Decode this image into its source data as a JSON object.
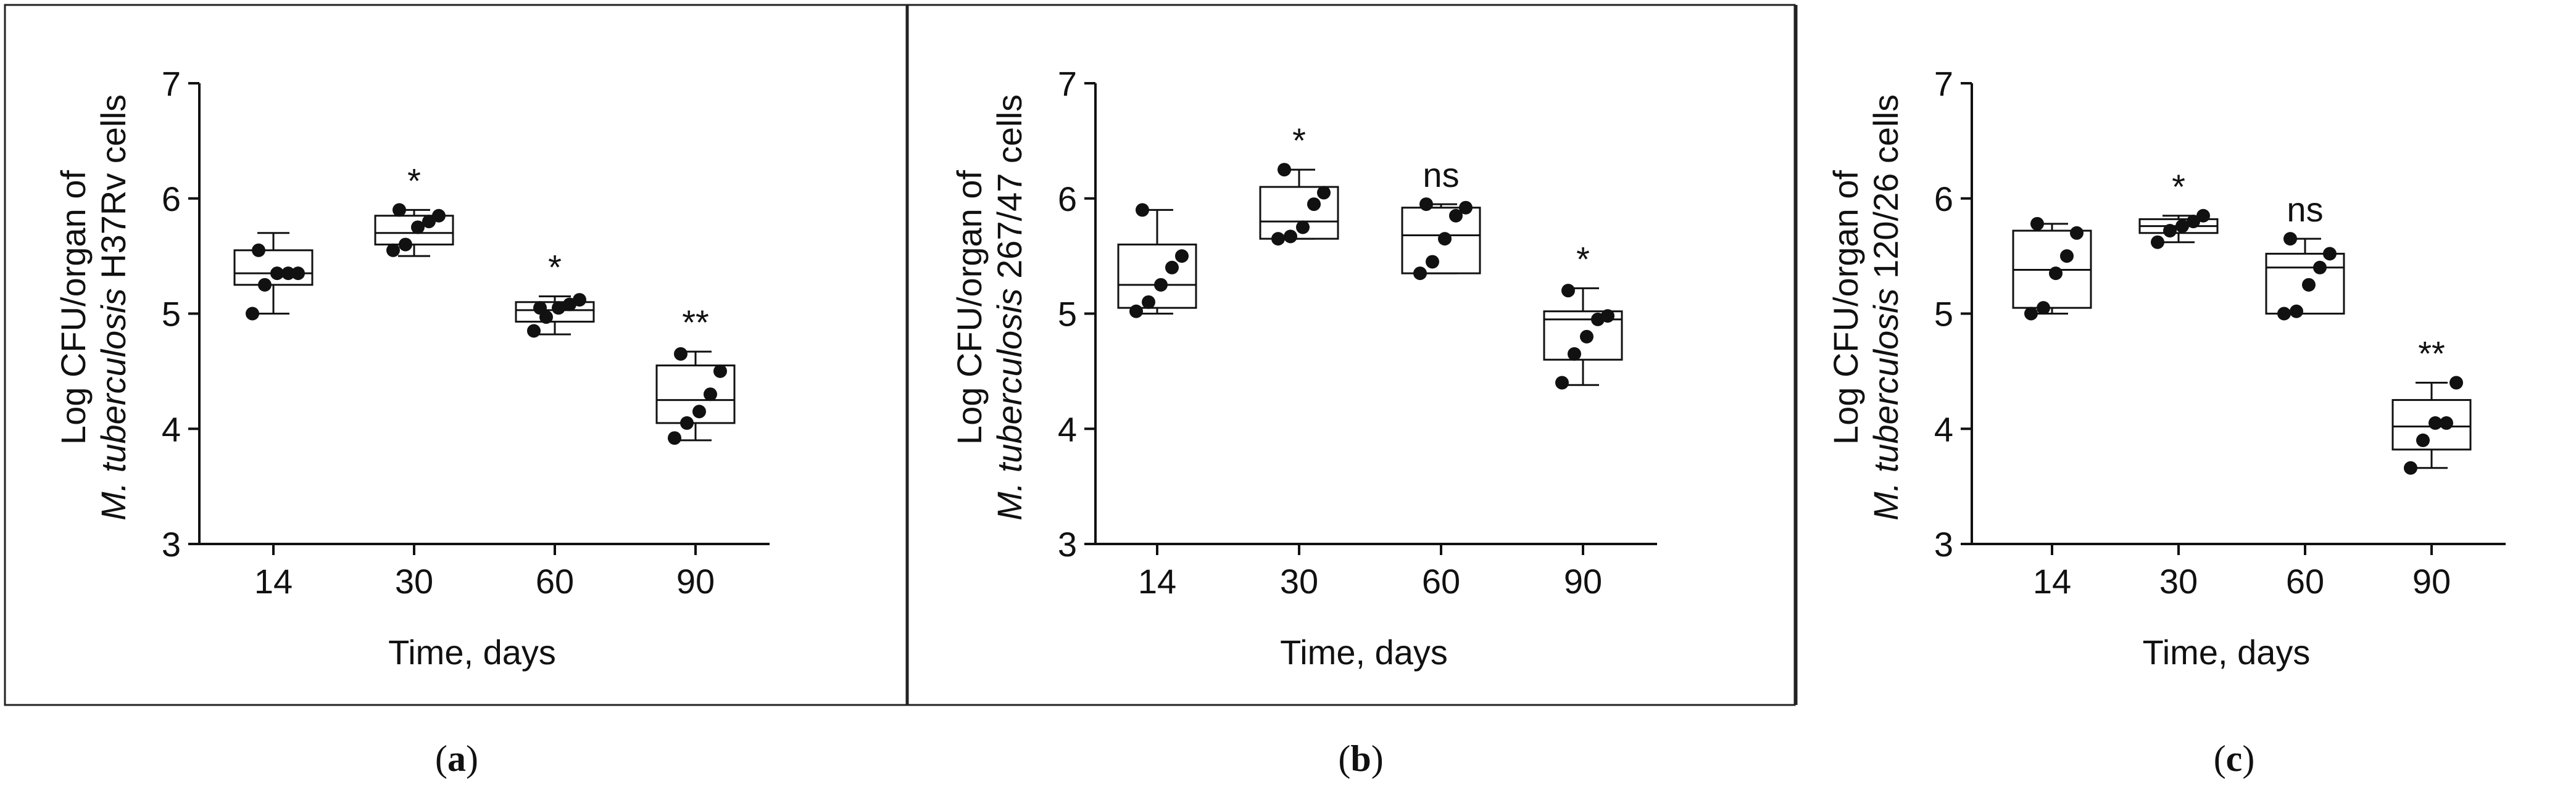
{
  "x_axis_label": "Time, days",
  "chart_data": [
    {
      "type": "box",
      "panel": "a",
      "caption_open": "(",
      "caption_letter": "a",
      "caption_close": ")",
      "ylabel_line1": "Log CFU/organ of",
      "ylabel_italic": "M. tuberculosis",
      "ylabel_rest": " H37Rv cells",
      "xlabel": "Time, days",
      "categories": [
        "14",
        "30",
        "60",
        "90"
      ],
      "yticks": [
        "3",
        "4",
        "5",
        "6",
        "7"
      ],
      "ylim": [
        3,
        7
      ],
      "boxes": [
        {
          "min": 5.0,
          "q1": 5.25,
          "median": 5.35,
          "q3": 5.55,
          "max": 5.7,
          "points": [
            5.0,
            5.25,
            5.35,
            5.35,
            5.35,
            5.55
          ],
          "significance": ""
        },
        {
          "min": 5.5,
          "q1": 5.6,
          "median": 5.7,
          "q3": 5.85,
          "max": 5.9,
          "points": [
            5.55,
            5.6,
            5.75,
            5.8,
            5.85,
            5.9
          ],
          "significance": "*"
        },
        {
          "min": 4.82,
          "q1": 4.93,
          "median": 5.03,
          "q3": 5.1,
          "max": 5.15,
          "points": [
            4.85,
            4.97,
            5.05,
            5.08,
            5.12,
            5.05
          ],
          "significance": "*"
        },
        {
          "min": 3.9,
          "q1": 4.05,
          "median": 4.25,
          "q3": 4.55,
          "max": 4.67,
          "points": [
            3.92,
            4.05,
            4.15,
            4.3,
            4.5,
            4.65
          ],
          "significance": "**"
        }
      ]
    },
    {
      "type": "box",
      "panel": "b",
      "caption_open": "(",
      "caption_letter": "b",
      "caption_close": ")",
      "ylabel_line1": "Log CFU/organ of",
      "ylabel_italic": "M. tuberculosis",
      "ylabel_rest": " 267/47 cells",
      "xlabel": "Time, days",
      "categories": [
        "14",
        "30",
        "60",
        "90"
      ],
      "yticks": [
        "3",
        "4",
        "5",
        "6",
        "7"
      ],
      "ylim": [
        3,
        7
      ],
      "boxes": [
        {
          "min": 5.0,
          "q1": 5.05,
          "median": 5.25,
          "q3": 5.6,
          "max": 5.9,
          "points": [
            5.02,
            5.1,
            5.25,
            5.4,
            5.5,
            5.9
          ],
          "significance": ""
        },
        {
          "min": 5.65,
          "q1": 5.65,
          "median": 5.8,
          "q3": 6.1,
          "max": 6.25,
          "points": [
            5.65,
            5.67,
            5.75,
            5.95,
            6.05,
            6.25
          ],
          "significance": "*"
        },
        {
          "min": 5.35,
          "q1": 5.35,
          "median": 5.68,
          "q3": 5.92,
          "max": 5.95,
          "points": [
            5.35,
            5.45,
            5.65,
            5.85,
            5.92,
            5.95
          ],
          "significance": "ns"
        },
        {
          "min": 4.38,
          "q1": 4.6,
          "median": 4.95,
          "q3": 5.02,
          "max": 5.22,
          "points": [
            4.4,
            4.65,
            4.8,
            4.95,
            4.98,
            5.2
          ],
          "significance": "*"
        }
      ]
    },
    {
      "type": "box",
      "panel": "c",
      "caption_open": "(",
      "caption_letter": "c",
      "caption_close": ")",
      "ylabel_line1": "Log CFU/organ of",
      "ylabel_italic": "M. tuberculosis",
      "ylabel_rest": " 120/26 cells",
      "xlabel": "Time, days",
      "categories": [
        "14",
        "30",
        "60",
        "90"
      ],
      "yticks": [
        "3",
        "4",
        "5",
        "6",
        "7"
      ],
      "ylim": [
        3,
        7
      ],
      "boxes": [
        {
          "min": 5.0,
          "q1": 5.05,
          "median": 5.38,
          "q3": 5.72,
          "max": 5.78,
          "points": [
            5.0,
            5.05,
            5.35,
            5.5,
            5.7,
            5.78
          ],
          "significance": ""
        },
        {
          "min": 5.62,
          "q1": 5.7,
          "median": 5.76,
          "q3": 5.82,
          "max": 5.85,
          "points": [
            5.62,
            5.72,
            5.76,
            5.8,
            5.85
          ],
          "significance": "*"
        },
        {
          "min": 5.0,
          "q1": 5.0,
          "median": 5.4,
          "q3": 5.52,
          "max": 5.65,
          "points": [
            5.0,
            5.02,
            5.25,
            5.4,
            5.52,
            5.65
          ],
          "significance": "ns"
        },
        {
          "min": 3.66,
          "q1": 3.82,
          "median": 4.02,
          "q3": 4.25,
          "max": 4.4,
          "points": [
            3.66,
            3.9,
            4.05,
            4.05,
            4.4
          ],
          "significance": "**"
        }
      ]
    }
  ]
}
